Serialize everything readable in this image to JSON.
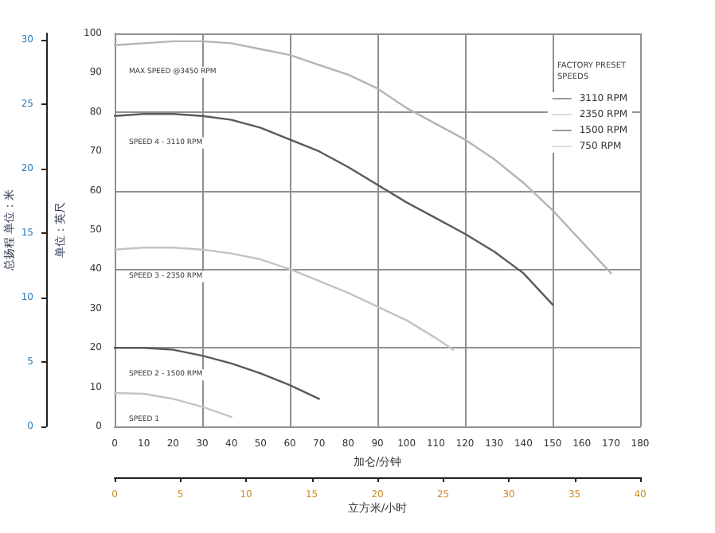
{
  "chart_data": {
    "type": "line",
    "xlabel": "加仑/分钟",
    "ylabel": "单位：英尺",
    "y2label": "总扬程 单位：米",
    "x2label": "立方米/小时",
    "legend_title": "FACTORY PRESET SPEEDS",
    "legend": "top right",
    "grid": true,
    "marker": "none",
    "line_style": "solid",
    "xlim": [
      0,
      180
    ],
    "xticks": [
      0,
      10,
      20,
      30,
      40,
      50,
      60,
      70,
      80,
      90,
      100,
      110,
      120,
      130,
      140,
      150,
      160,
      170,
      180
    ],
    "ylim": [
      0,
      100
    ],
    "yticks": [
      0,
      10,
      20,
      30,
      40,
      50,
      60,
      70,
      80,
      90,
      100
    ],
    "y2lim": [
      0,
      30.48
    ],
    "y2ticks": [
      0,
      5,
      10,
      15,
      20,
      25,
      30
    ],
    "x2lim": [
      0,
      40
    ],
    "x2ticks": [
      0,
      5,
      10,
      15,
      20,
      25,
      30,
      35,
      40
    ],
    "series": [
      {
        "color": "#b4b4b4",
        "x": [
          0,
          10,
          20,
          30,
          40,
          50,
          60,
          70,
          80,
          90,
          100,
          110,
          120,
          130,
          140,
          150,
          160,
          170
        ],
        "values": [
          97,
          97.5,
          98,
          98,
          97.5,
          96,
          94.5,
          92,
          89.5,
          86,
          81,
          77,
          73,
          68,
          62,
          55,
          47,
          39
        ]
      },
      {
        "name": "3110 RPM",
        "color": "#5a5a5a",
        "x": [
          0,
          10,
          20,
          30,
          40,
          50,
          60,
          70,
          80,
          90,
          100,
          110,
          120,
          130,
          140,
          150
        ],
        "values": [
          79,
          79.5,
          79.5,
          79,
          78,
          76,
          73,
          70,
          66,
          61.5,
          57,
          53,
          49,
          44.5,
          39,
          31
        ]
      },
      {
        "name": "2350 RPM",
        "color": "#c4c4c4",
        "x": [
          0,
          10,
          20,
          30,
          40,
          50,
          60,
          70,
          80,
          90,
          100,
          110,
          116
        ],
        "values": [
          45,
          45.5,
          45.5,
          45,
          44,
          42.5,
          40,
          37,
          34,
          30.5,
          27,
          22.5,
          19.5
        ]
      },
      {
        "name": "1500 RPM",
        "color": "#5a5a5a",
        "x": [
          0,
          10,
          20,
          30,
          40,
          50,
          60,
          70
        ],
        "values": [
          20,
          20,
          19.5,
          18,
          16,
          13.5,
          10.5,
          7
        ]
      },
      {
        "name": "750 RPM",
        "color": "#c4c4c4",
        "x": [
          0,
          10,
          20,
          30,
          40
        ],
        "values": [
          8.5,
          8.3,
          7,
          5,
          2.4
        ]
      }
    ],
    "annotations": [
      "MAX SPEED @3450 RPM",
      "SPEED 4 - 3110 RPM",
      "SPEED 3 - 2350 RPM",
      "SPEED 2 - 1500 RPM",
      "SPEED 1"
    ]
  }
}
